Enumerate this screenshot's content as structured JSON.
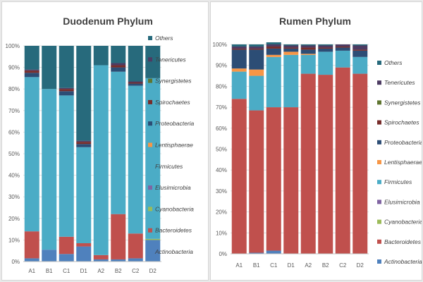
{
  "chart_data": [
    {
      "type": "bar",
      "stacked": true,
      "normalized": true,
      "title": "Duodenum Phylum",
      "categories": [
        "A1",
        "B1",
        "C1",
        "D1",
        "A2",
        "B2",
        "C2",
        "D2"
      ],
      "yticks": [
        "0%",
        "10%",
        "20%",
        "30%",
        "40%",
        "50%",
        "60%",
        "70%",
        "80%",
        "90%",
        "100%"
      ],
      "ylim": [
        0,
        100
      ],
      "legend_position": "right",
      "grid": true,
      "series": [
        {
          "name": "Actinobacteria",
          "color": "#4f81bd",
          "values": [
            1.5,
            5.5,
            3.5,
            7,
            1,
            1,
            1.5,
            10
          ]
        },
        {
          "name": "Bacteroidetes",
          "color": "#c0504d",
          "values": [
            12.5,
            0,
            8,
            1.5,
            2,
            21,
            11.5,
            0
          ]
        },
        {
          "name": "Cyanobacteria",
          "color": "#9bbb59",
          "values": [
            0,
            0,
            0,
            0,
            0,
            0,
            0,
            0.5
          ]
        },
        {
          "name": "Elusimicrobia",
          "color": "#8064a2",
          "values": [
            0,
            0,
            0,
            0,
            0,
            0,
            0,
            0
          ]
        },
        {
          "name": "Firmicutes",
          "color": "#4bacc6",
          "values": [
            71.5,
            74.5,
            65.5,
            44.5,
            88,
            66,
            68.5,
            74.5
          ]
        },
        {
          "name": "Lentisphaerae",
          "color": "#f79646",
          "values": [
            0,
            0,
            0,
            0,
            0,
            0,
            0,
            0
          ]
        },
        {
          "name": "Proteobacteria",
          "color": "#2c4d75",
          "values": [
            2,
            0,
            2,
            1.5,
            0,
            2,
            1,
            0
          ]
        },
        {
          "name": "Spirochaetes",
          "color": "#772c2a",
          "values": [
            1,
            0,
            1,
            1,
            0,
            1,
            0.5,
            0
          ]
        },
        {
          "name": "Synergistetes",
          "color": "#5f7530",
          "values": [
            0,
            0,
            0,
            0,
            0,
            0,
            0,
            0
          ]
        },
        {
          "name": "Tenericutes",
          "color": "#4d3b62",
          "values": [
            0.5,
            0,
            0.5,
            0.5,
            0,
            1,
            0.5,
            0
          ]
        },
        {
          "name": "Others",
          "color": "#276a7c",
          "values": [
            11,
            20,
            19.5,
            44,
            9,
            8,
            16.5,
            15
          ]
        }
      ]
    },
    {
      "type": "bar",
      "stacked": true,
      "normalized": true,
      "title": "Rumen Phylum",
      "categories": [
        "A1",
        "B1",
        "C1",
        "D1",
        "A2",
        "B2",
        "C2",
        "D2"
      ],
      "yticks": [
        "0%",
        "10%",
        "20%",
        "30%",
        "40%",
        "50%",
        "60%",
        "70%",
        "80%",
        "90%",
        "100%"
      ],
      "ylim": [
        0,
        100
      ],
      "legend_position": "right",
      "grid": true,
      "series": [
        {
          "name": "Actinobacteria",
          "color": "#4f81bd",
          "values": [
            0,
            0.5,
            1.5,
            0,
            0,
            0,
            0,
            0
          ]
        },
        {
          "name": "Bacteroidetes",
          "color": "#c0504d",
          "values": [
            74,
            68,
            68.5,
            70,
            86,
            85.5,
            89,
            86
          ]
        },
        {
          "name": "Cyanobacteria",
          "color": "#9bbb59",
          "values": [
            0,
            0,
            0,
            0,
            0,
            0,
            0,
            0
          ]
        },
        {
          "name": "Elusimicrobia",
          "color": "#8064a2",
          "values": [
            0,
            0,
            0,
            0,
            0,
            0,
            0,
            0
          ]
        },
        {
          "name": "Firmicutes",
          "color": "#4bacc6",
          "values": [
            13,
            16.5,
            24,
            25,
            9,
            11,
            8,
            8
          ]
        },
        {
          "name": "Lentisphaerae",
          "color": "#f79646",
          "values": [
            1.5,
            3,
            1,
            1.5,
            0.5,
            0,
            0,
            0
          ]
        },
        {
          "name": "Proteobacteria",
          "color": "#2c4d75",
          "values": [
            9,
            9.5,
            3,
            1.5,
            2,
            1.5,
            1.5,
            3
          ]
        },
        {
          "name": "Spirochaetes",
          "color": "#772c2a",
          "values": [
            0.5,
            0.5,
            1,
            0.5,
            1,
            0.5,
            0.5,
            0.5
          ]
        },
        {
          "name": "Synergistetes",
          "color": "#5f7530",
          "values": [
            0,
            0,
            0,
            0,
            0,
            0,
            0,
            0
          ]
        },
        {
          "name": "Tenericutes",
          "color": "#4d3b62",
          "values": [
            1,
            1,
            1,
            1,
            1,
            1,
            1,
            2
          ]
        },
        {
          "name": "Others",
          "color": "#276a7c",
          "values": [
            1,
            1,
            1,
            0.5,
            0.5,
            0.5,
            0,
            0.5
          ]
        }
      ]
    }
  ]
}
